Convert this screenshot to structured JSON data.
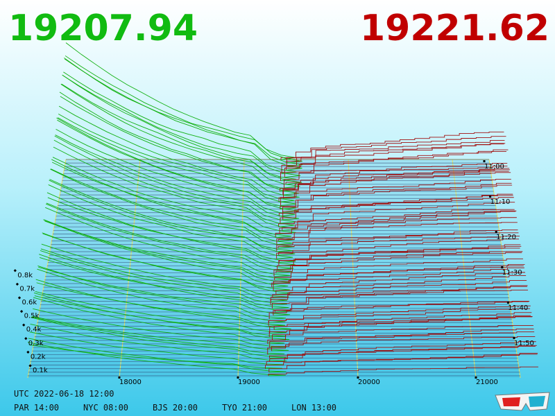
{
  "prices": {
    "bid": "19207.94",
    "ask": "19221.62"
  },
  "depth_axis": {
    "labels": [
      "0.1k",
      "0.2k",
      "0.3k",
      "0.4k",
      "0.5k",
      "0.6k",
      "0.7k",
      "0.8k"
    ]
  },
  "price_axis": {
    "labels": [
      "18000",
      "19000",
      "20000",
      "21000"
    ]
  },
  "time_axis": {
    "labels": [
      "11:00",
      "11:10",
      "11:20",
      "11:30",
      "11:40",
      "11:50"
    ]
  },
  "footer": {
    "utc": "UTC 2022-06-18 12:00",
    "clocks": [
      "PAR 14:00",
      "NYC 08:00",
      "BJS 20:00",
      "TYO 21:00",
      "LON 13:00"
    ]
  }
}
